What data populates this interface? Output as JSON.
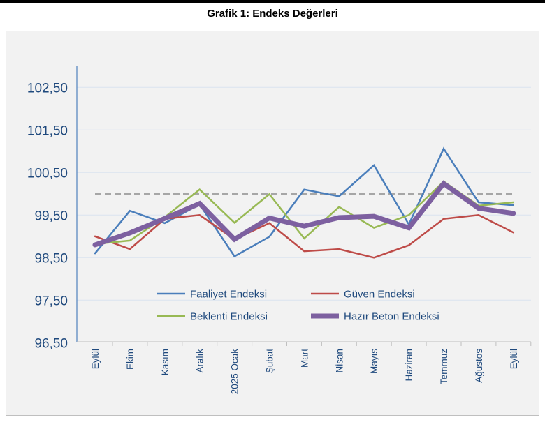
{
  "title": "Grafik 1: Endeks Değerleri",
  "chart_data": {
    "type": "line",
    "title": "Grafik 1: Endeks Değerleri",
    "categories": [
      "Eylül",
      "Ekim",
      "Kasım",
      "Aralık",
      "2025 Ocak",
      "Şubat",
      "Mart",
      "Nisan",
      "Mayıs",
      "Haziran",
      "Temmuz",
      "Ağustos",
      "Eylül"
    ],
    "yticks": [
      "96,50",
      "97,50",
      "98,50",
      "99,50",
      "100,50",
      "101,50",
      "102,50"
    ],
    "ytick_values": [
      96.5,
      97.5,
      98.5,
      99.5,
      100.5,
      101.5,
      102.5
    ],
    "ylim": [
      96.5,
      103.0
    ],
    "grid": true,
    "reference_line": {
      "value": 100,
      "style": "dashed",
      "color": "#a6a6a6"
    },
    "legend_position": "inside-bottom",
    "series": [
      {
        "name": "Faaliyet Endeksi",
        "color": "#4a7ebb",
        "width": 2.5,
        "values": [
          98.6,
          99.6,
          99.31,
          99.75,
          98.53,
          98.99,
          100.1,
          99.94,
          100.67,
          99.28,
          101.06,
          99.8,
          99.73
        ]
      },
      {
        "name": "Güven Endeksi",
        "color": "#be4b48",
        "width": 2.5,
        "values": [
          99.0,
          98.7,
          99.41,
          99.5,
          98.93,
          99.31,
          98.65,
          98.7,
          98.5,
          98.79,
          99.41,
          99.5,
          99.09
        ]
      },
      {
        "name": "Beklenti Endeksi",
        "color": "#98b954",
        "width": 2.5,
        "values": [
          98.82,
          98.9,
          99.45,
          100.1,
          99.32,
          99.99,
          98.95,
          99.69,
          99.2,
          99.5,
          100.29,
          99.72,
          99.8
        ]
      },
      {
        "name": "Hazır Beton Endeksi",
        "color": "#7d60a0",
        "width": 7,
        "values": [
          98.8,
          99.08,
          99.42,
          99.77,
          98.93,
          99.43,
          99.24,
          99.44,
          99.47,
          99.2,
          100.24,
          99.66,
          99.54
        ]
      }
    ]
  }
}
